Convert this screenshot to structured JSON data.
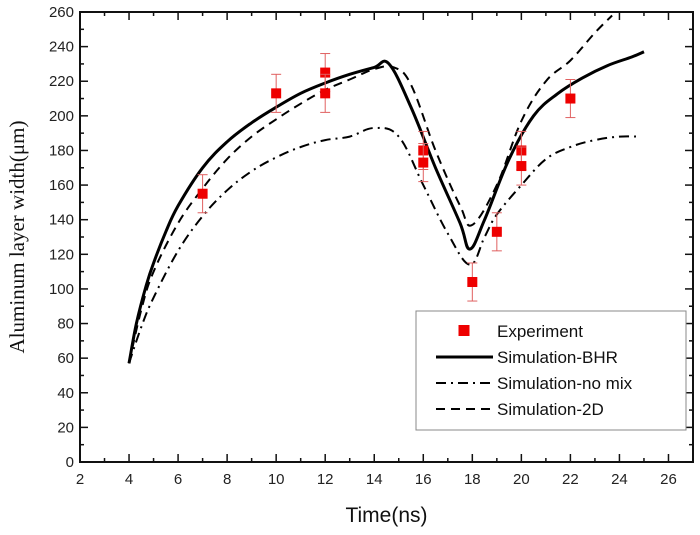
{
  "chart_data": {
    "type": "line",
    "title": "",
    "xlabel": "Time(ns)",
    "ylabel": "Aluminum layer width(μm)",
    "xlim": [
      2,
      27
    ],
    "ylim": [
      0,
      260
    ],
    "xticks": [
      2,
      4,
      6,
      8,
      10,
      12,
      14,
      16,
      18,
      20,
      22,
      24,
      26
    ],
    "yticks": [
      0,
      20,
      40,
      60,
      80,
      100,
      120,
      140,
      160,
      180,
      200,
      220,
      240,
      260
    ],
    "grid": false,
    "legend_position": "bottom-right",
    "series": [
      {
        "name": "Experiment",
        "kind": "scatter",
        "marker": "square",
        "color": "#ee0000",
        "errorbar_color": "#e06060",
        "points": [
          {
            "x": 7,
            "y": 155,
            "err": 11
          },
          {
            "x": 10,
            "y": 213,
            "err": 11
          },
          {
            "x": 12,
            "y": 225,
            "err": 11
          },
          {
            "x": 12,
            "y": 213,
            "err": 11
          },
          {
            "x": 16,
            "y": 180,
            "err": 11
          },
          {
            "x": 16,
            "y": 173,
            "err": 11
          },
          {
            "x": 18,
            "y": 104,
            "err": 11
          },
          {
            "x": 19,
            "y": 133,
            "err": 11
          },
          {
            "x": 20,
            "y": 180,
            "err": 11
          },
          {
            "x": 20,
            "y": 171,
            "err": 11
          },
          {
            "x": 22,
            "y": 210,
            "err": 11
          }
        ]
      },
      {
        "name": "Simulation-BHR",
        "kind": "line",
        "style": "solid",
        "color": "#000000",
        "x": [
          4,
          4.3,
          4.7,
          5,
          5.5,
          6,
          7,
          8,
          9,
          10,
          11,
          12,
          13,
          14,
          14.6,
          15.5,
          16.5,
          17.5,
          17.9,
          18.5,
          19.5,
          20.5,
          21.5,
          22.5,
          23.5,
          24.5,
          25
        ],
        "y": [
          57,
          80,
          102,
          115,
          133,
          148,
          170,
          185,
          196,
          205,
          213,
          219,
          224,
          228,
          230,
          205,
          170,
          138,
          123,
          140,
          175,
          200,
          213,
          222,
          229,
          234,
          237
        ]
      },
      {
        "name": "Simulation-no mix",
        "kind": "line",
        "style": "dashdot",
        "color": "#000000",
        "x": [
          4,
          4.5,
          5,
          6,
          7,
          8,
          9,
          10,
          11,
          12,
          13,
          14,
          15,
          16,
          17,
          17.9,
          18.5,
          19,
          20,
          21,
          22,
          23,
          24,
          24.8
        ],
        "y": [
          57,
          78,
          95,
          122,
          142,
          157,
          168,
          176,
          182,
          186,
          188,
          193,
          188,
          160,
          132,
          114,
          130,
          143,
          160,
          175,
          182,
          186,
          188,
          188
        ]
      },
      {
        "name": "Simulation-2D",
        "kind": "line",
        "style": "dashed",
        "color": "#000000",
        "x": [
          4,
          4.5,
          5,
          6,
          7,
          8,
          9,
          10,
          11,
          12,
          13,
          14,
          14.8,
          15.5,
          16.5,
          17.5,
          18,
          19,
          20,
          21,
          22,
          23,
          23.7
        ],
        "y": [
          57,
          88,
          110,
          138,
          158,
          175,
          188,
          198,
          207,
          215,
          221,
          227,
          228,
          218,
          180,
          148,
          137,
          160,
          197,
          220,
          232,
          248,
          258
        ]
      }
    ]
  }
}
